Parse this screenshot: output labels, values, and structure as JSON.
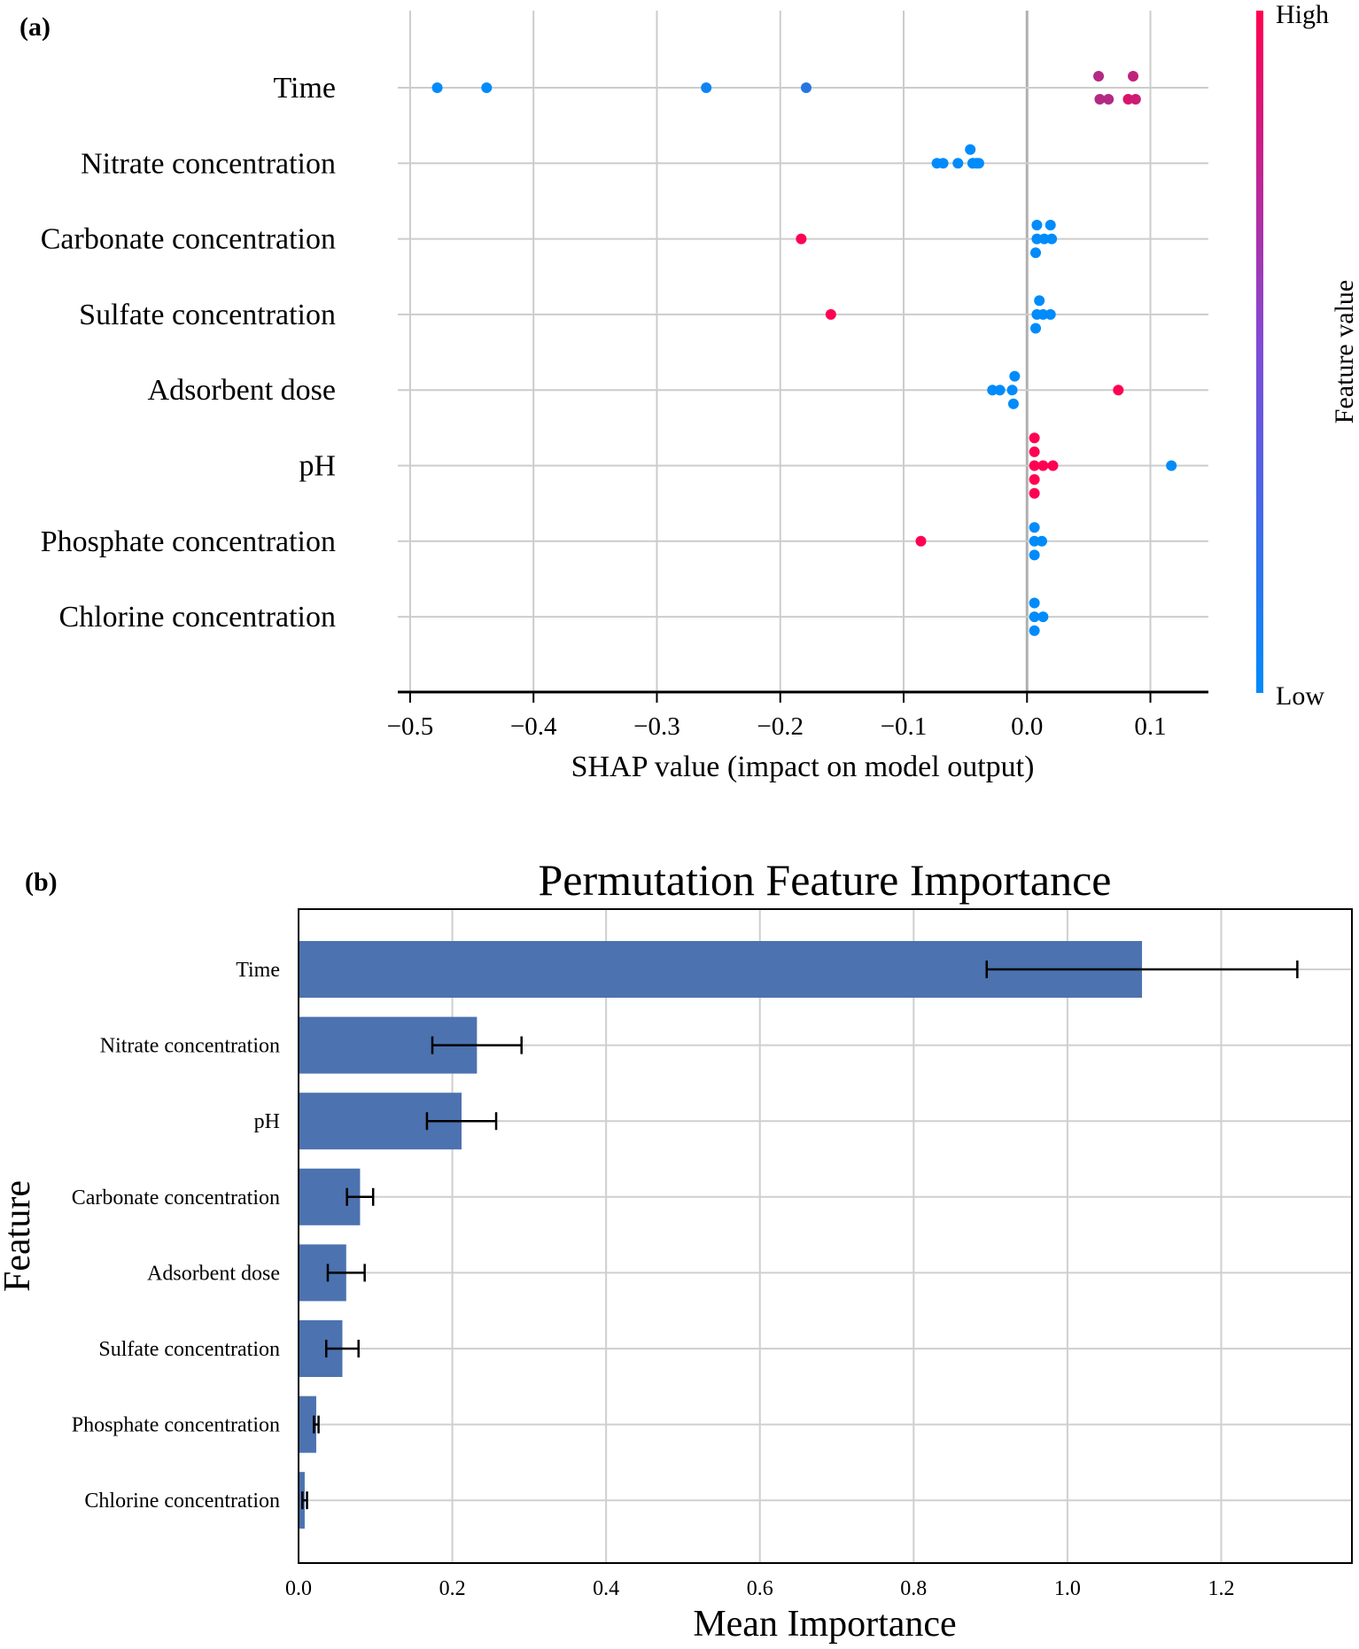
{
  "chart_data": [
    {
      "panel": "(a)",
      "type": "scatter",
      "subtype": "shap-beeswarm",
      "title": "",
      "xlabel": "SHAP value (impact on model output)",
      "ylabel": "",
      "xlim": [
        -0.51,
        0.147
      ],
      "xticks": [
        -0.5,
        -0.4,
        -0.3,
        -0.2,
        -0.1,
        0.0,
        0.1
      ],
      "xtick_labels": [
        "−0.5",
        "−0.4",
        "−0.3",
        "−0.2",
        "−0.1",
        "0.0",
        "0.1"
      ],
      "grid": true,
      "colorbar": {
        "label": "Feature value",
        "high": "High",
        "low": "Low",
        "high_color": "#ff0052",
        "low_color": "#008bfb"
      },
      "features": [
        {
          "name": "Time",
          "points": [
            {
              "x": -0.478,
              "f": 0.0,
              "j": 0
            },
            {
              "x": -0.438,
              "f": 0.0,
              "j": 0
            },
            {
              "x": -0.26,
              "f": 0.05,
              "j": 0
            },
            {
              "x": -0.179,
              "f": 0.15,
              "j": 0
            },
            {
              "x": 0.058,
              "f": 0.7,
              "j": 1
            },
            {
              "x": 0.086,
              "f": 0.75,
              "j": 1
            },
            {
              "x": 0.059,
              "f": 0.7,
              "j": -1
            },
            {
              "x": 0.066,
              "f": 0.7,
              "j": -1
            },
            {
              "x": 0.082,
              "f": 0.85,
              "j": -1
            },
            {
              "x": 0.088,
              "f": 0.8,
              "j": -1
            }
          ]
        },
        {
          "name": "Nitrate concentration",
          "points": [
            {
              "x": -0.073,
              "f": 0.0,
              "j": 0
            },
            {
              "x": -0.068,
              "f": 0.0,
              "j": 0
            },
            {
              "x": -0.056,
              "f": 0.0,
              "j": 0
            },
            {
              "x": -0.044,
              "f": 0.0,
              "j": 0
            },
            {
              "x": -0.039,
              "f": 0.0,
              "j": 0
            },
            {
              "x": -0.046,
              "f": 0.0,
              "j": 1.2
            },
            {
              "x": -0.044,
              "f": 0.0,
              "j": 0
            },
            {
              "x": -0.041,
              "f": 0.0,
              "j": 0
            }
          ]
        },
        {
          "name": "Carbonate concentration",
          "points": [
            {
              "x": -0.183,
              "f": 1.0,
              "j": 0
            },
            {
              "x": 0.008,
              "f": 0.0,
              "j": 0
            },
            {
              "x": 0.014,
              "f": 0.0,
              "j": 0
            },
            {
              "x": 0.02,
              "f": 0.0,
              "j": 0
            },
            {
              "x": 0.008,
              "f": 0.0,
              "j": 1.2
            },
            {
              "x": 0.019,
              "f": 0.0,
              "j": 1.2
            },
            {
              "x": 0.007,
              "f": 0.0,
              "j": -1.2
            }
          ]
        },
        {
          "name": "Sulfate concentration",
          "points": [
            {
              "x": -0.159,
              "f": 1.0,
              "j": 0
            },
            {
              "x": 0.008,
              "f": 0.0,
              "j": 0
            },
            {
              "x": 0.013,
              "f": 0.0,
              "j": 0
            },
            {
              "x": 0.019,
              "f": 0.0,
              "j": 0
            },
            {
              "x": 0.01,
              "f": 0.0,
              "j": 1.2
            },
            {
              "x": 0.007,
              "f": 0.0,
              "j": -1.2
            }
          ]
        },
        {
          "name": "Adsorbent dose",
          "points": [
            {
              "x": -0.028,
              "f": 0.0,
              "j": 0
            },
            {
              "x": -0.022,
              "f": 0.0,
              "j": 0
            },
            {
              "x": -0.012,
              "f": 0.0,
              "j": 0
            },
            {
              "x": -0.01,
              "f": 0.0,
              "j": 1.2
            },
            {
              "x": -0.011,
              "f": 0.0,
              "j": -1.2
            },
            {
              "x": 0.074,
              "f": 1.0,
              "j": 0
            }
          ]
        },
        {
          "name": "pH",
          "points": [
            {
              "x": 0.006,
              "f": 1.0,
              "j": 0
            },
            {
              "x": 0.013,
              "f": 1.0,
              "j": 0
            },
            {
              "x": 0.021,
              "f": 1.0,
              "j": 0
            },
            {
              "x": 0.006,
              "f": 1.0,
              "j": 1.2
            },
            {
              "x": 0.006,
              "f": 1.0,
              "j": -1.2
            },
            {
              "x": 0.006,
              "f": 1.0,
              "j": 2.4
            },
            {
              "x": 0.006,
              "f": 1.0,
              "j": -2.4
            },
            {
              "x": 0.117,
              "f": 0.0,
              "j": 0
            }
          ]
        },
        {
          "name": "Phosphate concentration",
          "points": [
            {
              "x": -0.086,
              "f": 1.0,
              "j": 0
            },
            {
              "x": 0.006,
              "f": 0.0,
              "j": 0
            },
            {
              "x": 0.012,
              "f": 0.0,
              "j": 0
            },
            {
              "x": 0.006,
              "f": 0.0,
              "j": 1.2
            },
            {
              "x": 0.006,
              "f": 0.0,
              "j": -1.2
            }
          ]
        },
        {
          "name": "Chlorine concentration",
          "points": [
            {
              "x": 0.006,
              "f": 0.0,
              "j": 0
            },
            {
              "x": 0.013,
              "f": 0.0,
              "j": 0
            },
            {
              "x": 0.006,
              "f": 0.0,
              "j": 1.2
            },
            {
              "x": 0.006,
              "f": 0.0,
              "j": -1.2
            }
          ]
        }
      ]
    },
    {
      "panel": "(b)",
      "type": "bar",
      "orientation": "horizontal",
      "title": "Permutation Feature Importance",
      "xlabel": "Mean Importance",
      "ylabel": "Feature",
      "xlim": [
        0,
        1.37
      ],
      "xticks": [
        0.0,
        0.2,
        0.4,
        0.6,
        0.8,
        1.0,
        1.2
      ],
      "xtick_labels": [
        "0.0",
        "0.2",
        "0.4",
        "0.6",
        "0.8",
        "1.0",
        "1.2"
      ],
      "grid": true,
      "bar_color": "#4c72b0",
      "categories": [
        "Time",
        "Nitrate concentration",
        "pH",
        "Carbonate concentration",
        "Adsorbent dose",
        "Sulfate concentration",
        "Phosphate concentration",
        "Chlorine concentration"
      ],
      "values": [
        1.097,
        0.232,
        0.212,
        0.08,
        0.062,
        0.057,
        0.023,
        0.008
      ],
      "errors": [
        0.202,
        0.058,
        0.045,
        0.017,
        0.024,
        0.021,
        0.003,
        0.003
      ]
    }
  ]
}
